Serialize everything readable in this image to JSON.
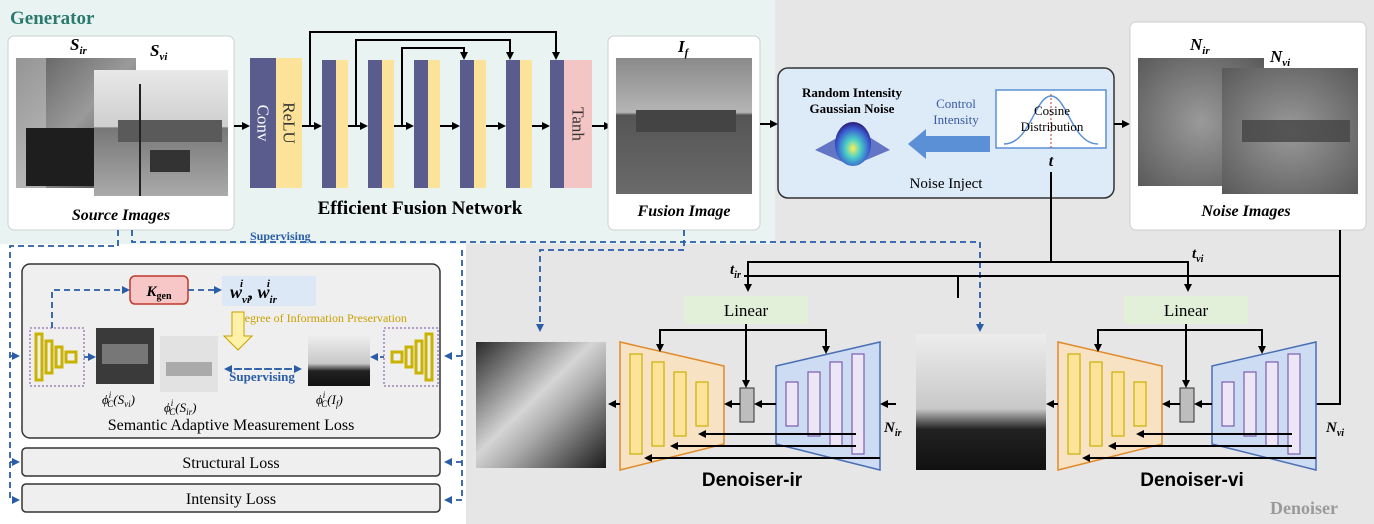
{
  "generator": {
    "title": "Generator",
    "source_label_ir": "S",
    "source_label_ir_sub": "ir",
    "source_label_vi": "S",
    "source_label_vi_sub": "vi",
    "source_caption": "Source Images",
    "conv_label": "Conv",
    "relu_label": "ReLU",
    "tanh_label": "Tanh",
    "network_caption": "Efficient Fusion Network",
    "fusion_label": "I",
    "fusion_label_sub": "f",
    "fusion_caption": "Fusion Image",
    "supervising_label": "Supervising"
  },
  "noise": {
    "gaussian_title_1": "Random Intensity",
    "gaussian_title_2": "Gaussian Noise",
    "control_1": "Control",
    "control_2": "Intensity",
    "cosine_1": "Cosine",
    "cosine_2": "Distribution",
    "t_label": "t",
    "inject_caption": "Noise Inject",
    "noise_label_ir": "N",
    "noise_label_ir_sub": "ir",
    "noise_label_vi": "N",
    "noise_label_vi_sub": "vi",
    "noise_caption": "Noise Images"
  },
  "loss": {
    "kgen": "K",
    "kgen_sub": "gen",
    "weights": "w",
    "w_vi_sub": "vi",
    "w_ir_sub": "ir",
    "w_sup": "i",
    "comma": ",",
    "degree": "Degree of Information Preservation",
    "supervising": "Supervising",
    "phi_svi": "ϕ",
    "phi_svi_arg": "(S",
    "phi_svi_arg_sub": "vi",
    "phi_sir": "ϕ",
    "phi_sir_arg": "(S",
    "phi_sir_arg_sub": "ir",
    "phi_if": "ϕ",
    "phi_if_arg": "(I",
    "phi_if_arg_sub": "f",
    "phi_sup": "i",
    "phi_sub": "C",
    "close_paren": ")",
    "semantic_caption": "Semantic Adaptive Measurement Loss",
    "structural": "Structural Loss",
    "intensity": "Intensity Loss"
  },
  "denoiser": {
    "title": "Denoiser",
    "t_ir": "t",
    "t_ir_sub": "ir",
    "t_vi": "t",
    "t_vi_sub": "vi",
    "linear_ir": "Linear",
    "linear_vi": "Linear",
    "n_ir": "N",
    "n_ir_sub": "ir",
    "n_vi": "N",
    "n_vi_sub": "vi",
    "caption_ir": "Denoiser-ir",
    "caption_vi": "Denoiser-vi"
  },
  "colors": {
    "generator_bg": "#e9f4f2",
    "denoiser_bg": "#e6e6e6",
    "conv_blue": "#5a5c8e",
    "relu_yellow": "#fde29a",
    "tanh_pink": "#f4c5c5",
    "arrow_blue": "#2a5ca8",
    "gold": "#c9b200",
    "orange_encoder": "#f3c98e",
    "blue_decoder": "#aac4ea",
    "linear_green": "#e2f0d9"
  }
}
